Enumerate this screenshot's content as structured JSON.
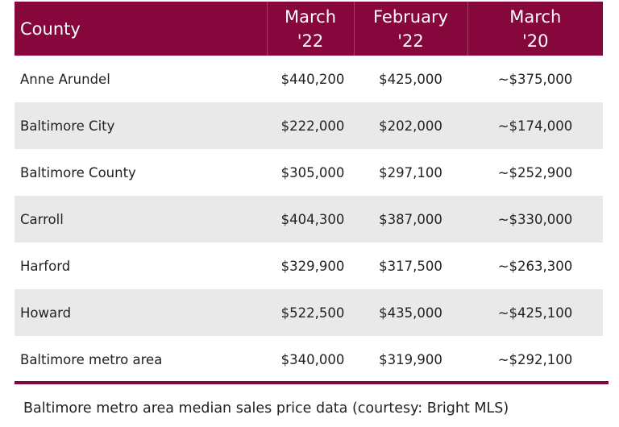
{
  "table": {
    "headers": [
      {
        "line1": "County",
        "line2": ""
      },
      {
        "line1": "March",
        "line2": "'22"
      },
      {
        "line1": "February",
        "line2": "'22"
      },
      {
        "line1": "March",
        "line2": "'20"
      }
    ],
    "rows": [
      {
        "county": "Anne Arundel",
        "mar22": "$440,200",
        "feb22": "$425,000",
        "mar20": "~$375,000"
      },
      {
        "county": "Baltimore City",
        "mar22": "$222,000",
        "feb22": "$202,000",
        "mar20": "~$174,000"
      },
      {
        "county": "Baltimore County",
        "mar22": "$305,000",
        "feb22": "$297,100",
        "mar20": "~$252,900"
      },
      {
        "county": "Carroll",
        "mar22": "$404,300",
        "feb22": "$387,000",
        "mar20": "~$330,000"
      },
      {
        "county": "Harford",
        "mar22": "$329,900",
        "feb22": "$317,500",
        "mar20": "~$263,300"
      },
      {
        "county": "Howard",
        "mar22": "$522,500",
        "feb22": "$435,000",
        "mar20": "~$425,100"
      },
      {
        "county": "Baltimore metro area",
        "mar22": "$340,000",
        "feb22": "$319,900",
        "mar20": "~$292,100"
      }
    ]
  },
  "caption": "Baltimore metro area median sales price data (courtesy: Bright MLS)",
  "colors": {
    "header_bg": "#85073c",
    "header_text": "#ffffff",
    "stripe": "#e9e9e9"
  }
}
